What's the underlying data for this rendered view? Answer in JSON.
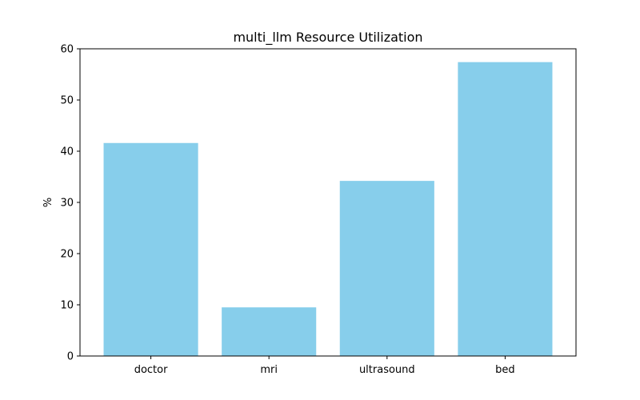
{
  "chart_data": {
    "type": "bar",
    "title": "multi_llm Resource Utilization",
    "xlabel": "",
    "ylabel": "%",
    "categories": [
      "doctor",
      "mri",
      "ultrasound",
      "bed"
    ],
    "values": [
      41.6,
      9.5,
      34.2,
      57.4
    ],
    "ylim": [
      0,
      60
    ],
    "yticks": [
      0,
      10,
      20,
      30,
      40,
      50,
      60
    ],
    "grid": false,
    "legend": false,
    "bar_color": "#87CEEB"
  }
}
